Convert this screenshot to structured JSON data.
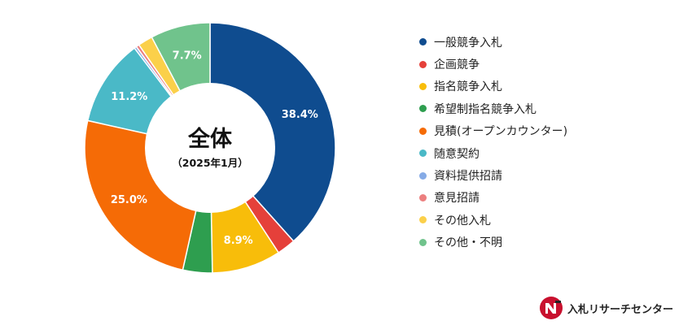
{
  "chart_data": {
    "type": "pie",
    "style": "donut",
    "title": "全体",
    "subtitle": "（2025年1月）",
    "legend_position": "right",
    "start_angle": "12 o'clock, clockwise",
    "categories": [
      "一般競争入札",
      "企画競争",
      "指名競争入札",
      "希望制指名競争入札",
      "見積(オープンカウンター)",
      "随意契約",
      "資料提供招請",
      "意見招請",
      "その他入札",
      "その他・不明"
    ],
    "values": [
      38.4,
      2.4,
      8.9,
      3.8,
      25.0,
      11.2,
      0.3,
      0.4,
      1.9,
      7.7
    ],
    "data_labels": [
      "38.4%",
      "",
      "8.9%",
      "",
      "25.0%",
      "11.2%",
      "",
      "",
      "",
      "7.7%"
    ],
    "colors": [
      "#0f4c8f",
      "#e5403a",
      "#f8bd0a",
      "#2e9e4f",
      "#f56b06",
      "#4ab9c7",
      "#86abe6",
      "#ec7f7f",
      "#fbd04a",
      "#70c38c"
    ]
  },
  "brand": {
    "name": "入札リサーチセンター",
    "logo_colors": [
      "#c8102e",
      "#222222"
    ]
  }
}
